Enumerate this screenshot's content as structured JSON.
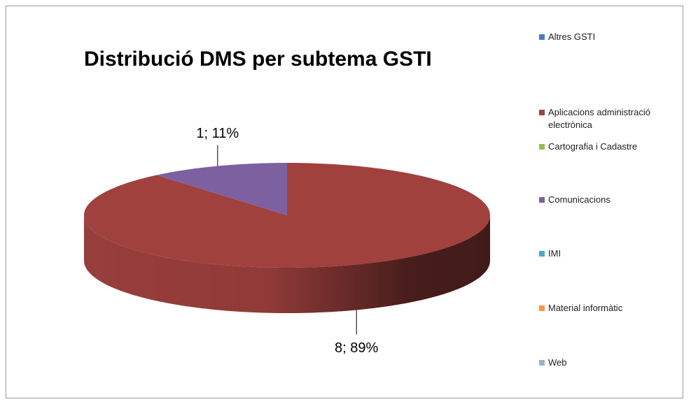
{
  "chart_data": {
    "type": "pie3d",
    "title": "Distribució DMS per subtema GSTI",
    "categories": [
      "Altres GSTI",
      "Aplicacions administració electrònica",
      "Cartografia i Cadastre",
      "Comunicacions",
      "IMI",
      "Material informàtic",
      "Web"
    ],
    "values": [
      0,
      8,
      0,
      1,
      0,
      0,
      0
    ],
    "value_labels": [
      null,
      "8; 89%",
      null,
      "1; 11%",
      null,
      null,
      null
    ],
    "colors": [
      "#4a7ebb",
      "#a0413e",
      "#98b954",
      "#7d60a0",
      "#46aac5",
      "#f79646",
      "#95b3d7"
    ],
    "legend": "right"
  }
}
